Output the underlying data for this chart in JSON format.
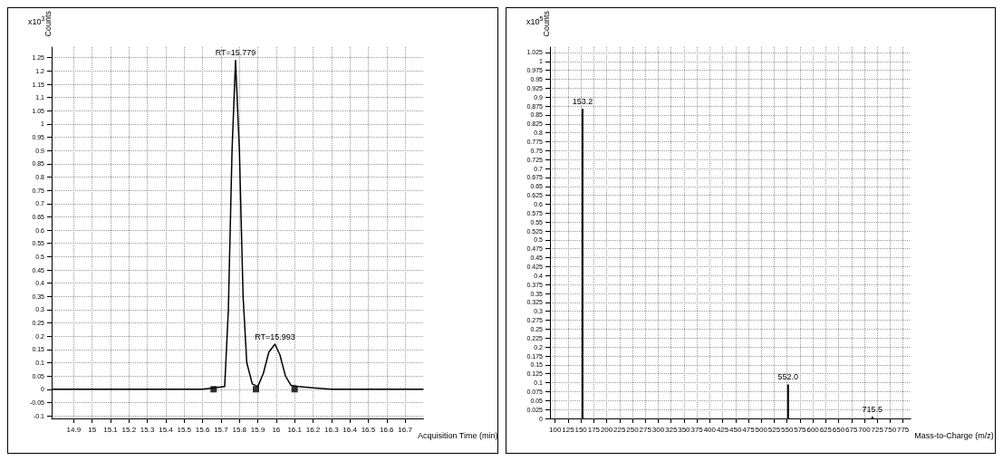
{
  "chart_data": [
    {
      "type": "line",
      "ylabel": "Counts",
      "xlabel": "Acquisition Time (min)",
      "annotations": [
        "x10$^{3}$",
        {
          "text": "RT=15.779",
          "x": 15.779,
          "y": 1.24
        },
        {
          "text": "RT=15.993",
          "x": 15.993,
          "y": 0.17
        }
      ],
      "xlim": [
        14.78,
        16.8
      ],
      "xticks": [
        14.9,
        15,
        15.1,
        15.2,
        15.3,
        15.4,
        15.5,
        15.6,
        15.7,
        15.8,
        15.9,
        16,
        16.1,
        16.2,
        16.3,
        16.4,
        16.5,
        16.6,
        16.7
      ],
      "ylim": [
        -0.11,
        1.29
      ],
      "yticks": [
        -0.1,
        -0.05,
        0,
        0.05,
        0.1,
        0.15,
        0.2,
        0.25,
        0.3,
        0.35,
        0.4,
        0.45,
        0.5,
        0.55,
        0.6,
        0.65,
        0.7,
        0.75,
        0.8,
        0.85,
        0.9,
        0.95,
        1,
        1.05,
        1.1,
        1.15,
        1.2,
        1.25
      ],
      "grid": true,
      "series": [
        {
          "color": "#000000",
          "marker": "none",
          "x": [
            14.78,
            15.6,
            15.72,
            15.74,
            15.76,
            15.779,
            15.8,
            15.82,
            15.84,
            15.87,
            15.9,
            15.93,
            15.96,
            15.993,
            16.02,
            16.05,
            16.08,
            16.12,
            16.2,
            16.3,
            16.8
          ],
          "values": [
            0,
            0,
            0.01,
            0.3,
            0.9,
            1.24,
            0.9,
            0.35,
            0.1,
            0.02,
            0.01,
            0.06,
            0.14,
            0.17,
            0.13,
            0.05,
            0.015,
            0.01,
            0.005,
            0,
            0
          ]
        },
        {
          "type": "scatter",
          "color": "#000000",
          "marker": "square",
          "x": [
            15.66,
            15.89,
            16.1
          ],
          "values": [
            0,
            0,
            0
          ]
        }
      ]
    },
    {
      "type": "bar",
      "ylabel": "Counts",
      "xlabel": "Mass-to-Charge (m/z)",
      "annotations": [
        "x10$^{5}$",
        {
          "text": "153.2",
          "x": 153.2,
          "y": 0.867
        },
        {
          "text": "552.0",
          "x": 552,
          "y": 0.095
        },
        {
          "text": "715.5",
          "x": 715.5,
          "y": 0.005
        }
      ],
      "xlim": [
        90,
        790
      ],
      "xticks": [
        100,
        125,
        150,
        175,
        200,
        225,
        250,
        275,
        300,
        325,
        350,
        375,
        400,
        425,
        450,
        475,
        500,
        525,
        550,
        575,
        600,
        625,
        650,
        675,
        700,
        725,
        750,
        775
      ],
      "ylim": [
        0,
        1.04
      ],
      "yticks": [
        0,
        0.025,
        0.05,
        0.075,
        0.1,
        0.125,
        0.15,
        0.175,
        0.2,
        0.225,
        0.25,
        0.275,
        0.3,
        0.325,
        0.35,
        0.375,
        0.4,
        0.425,
        0.45,
        0.475,
        0.5,
        0.525,
        0.55,
        0.575,
        0.6,
        0.625,
        0.65,
        0.675,
        0.7,
        0.725,
        0.75,
        0.775,
        0.8,
        0.825,
        0.85,
        0.875,
        0.9,
        0.925,
        0.95,
        0.975,
        1,
        1.025
      ],
      "grid": true,
      "series": [
        {
          "color": "#000000",
          "x": [
            153.2,
            552,
            715.5
          ],
          "values": [
            0.867,
            0.095,
            0.005
          ]
        }
      ]
    }
  ]
}
